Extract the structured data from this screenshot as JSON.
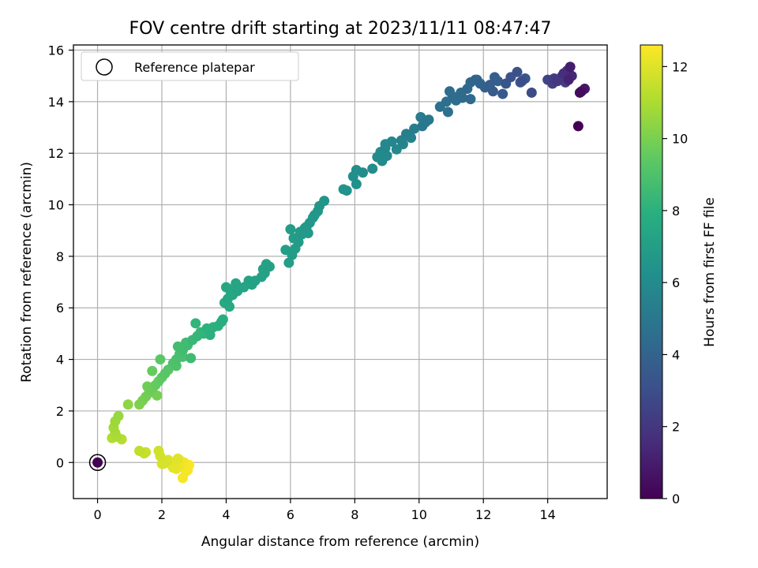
{
  "chart_data": {
    "type": "scatter",
    "title": "FOV centre drift starting at 2023/11/11 08:47:47",
    "xlabel": "Angular distance from reference (arcmin)",
    "ylabel": "Rotation from reference (arcmin)",
    "xlim": [
      -0.75,
      15.85
    ],
    "ylim": [
      -1.4,
      16.2
    ],
    "xticks": [
      0,
      2,
      4,
      6,
      8,
      10,
      12,
      14
    ],
    "yticks": [
      0,
      2,
      4,
      6,
      8,
      10,
      12,
      14,
      16
    ],
    "grid": true,
    "legend": {
      "placement": "top-left",
      "entries": [
        "Reference platepar"
      ]
    },
    "reference_point": {
      "x": 0,
      "y": 0
    },
    "colorbar": {
      "label": "Hours from first FF file",
      "range": [
        0,
        12.6
      ],
      "ticks": [
        0,
        2,
        4,
        6,
        8,
        10,
        12
      ],
      "colormap": "viridis"
    },
    "series": [
      {
        "x": [
          14.95,
          15.0,
          15.05,
          15.15,
          14.65,
          14.75,
          14.5,
          14.6,
          14.3,
          14.45,
          14.2,
          14.55,
          14.15,
          14.0,
          14.7,
          13.5,
          13.2,
          13.05,
          12.85,
          13.15,
          13.3,
          12.6,
          12.3,
          12.2,
          12.45,
          12.05,
          11.9,
          12.7,
          12.35,
          11.8,
          11.6,
          11.5,
          11.35,
          11.05,
          10.85,
          11.3,
          11.75,
          11.6,
          10.95,
          10.65,
          10.9,
          11.15,
          10.3,
          10.1,
          10.05,
          10.2,
          9.85,
          9.6,
          9.75,
          9.45,
          9.5,
          9.15,
          8.95,
          9.3,
          9.0,
          8.85,
          8.7,
          8.55,
          8.8,
          8.95,
          8.25,
          8.05,
          7.95,
          8.05,
          7.75,
          7.65,
          7.05,
          6.9,
          6.85,
          6.75,
          6.6,
          6.45,
          6.35,
          6.25,
          6.15,
          6.05,
          5.95,
          6.5,
          6.3,
          6.1,
          6.7,
          6.55,
          5.85,
          6.0,
          5.35,
          5.2,
          5.1,
          4.9,
          4.8,
          5.25,
          5.15,
          4.7,
          4.55,
          4.35,
          4.2,
          4.05,
          3.95,
          4.1,
          4.3,
          4.0,
          4.25,
          4.15,
          3.85,
          3.6,
          3.45,
          3.3,
          3.1,
          2.95,
          3.05,
          3.2,
          3.5,
          3.75,
          3.4,
          3.9,
          2.8,
          2.65,
          2.55,
          2.45,
          2.35,
          2.5,
          2.65,
          2.9,
          2.75,
          2.45,
          2.2,
          2.1,
          2.0,
          1.9,
          1.8,
          1.7,
          1.6,
          1.5,
          1.4,
          1.3,
          1.95,
          1.7,
          1.55,
          1.85,
          0.95,
          0.65,
          0.55,
          0.5,
          0.55,
          0.6,
          0.45,
          0.75,
          1.3,
          1.45,
          1.5,
          1.9,
          1.95,
          2.0,
          2.2,
          2.3,
          2.45,
          2.55,
          2.6,
          2.7,
          2.75,
          2.8,
          2.85,
          2.5,
          2.35,
          2.65,
          2.15,
          2.05
        ],
        "y": [
          13.05,
          14.35,
          14.4,
          14.5,
          14.85,
          15.0,
          15.1,
          15.2,
          14.8,
          15.0,
          14.9,
          14.75,
          14.7,
          14.85,
          15.35,
          14.35,
          14.8,
          15.15,
          14.95,
          14.75,
          14.9,
          14.3,
          14.4,
          14.65,
          14.8,
          14.55,
          14.7,
          14.7,
          14.95,
          14.85,
          14.75,
          14.5,
          14.15,
          14.2,
          14.0,
          14.35,
          14.85,
          14.1,
          14.4,
          13.8,
          13.6,
          14.05,
          13.3,
          13.05,
          13.4,
          13.2,
          12.95,
          12.75,
          12.6,
          12.5,
          12.35,
          12.45,
          12.2,
          12.15,
          11.9,
          11.7,
          11.85,
          11.4,
          12.05,
          12.35,
          11.25,
          11.35,
          11.1,
          10.8,
          10.55,
          10.6,
          10.15,
          9.95,
          9.75,
          9.6,
          9.3,
          9.1,
          8.85,
          8.55,
          8.3,
          8.05,
          7.75,
          9.15,
          8.95,
          8.7,
          9.5,
          8.9,
          8.25,
          9.05,
          7.6,
          7.35,
          7.2,
          7.05,
          6.9,
          7.7,
          7.5,
          7.05,
          6.8,
          6.65,
          6.5,
          6.35,
          6.2,
          6.05,
          6.95,
          6.8,
          6.75,
          6.6,
          5.45,
          5.25,
          5.15,
          5.0,
          4.9,
          4.75,
          5.4,
          5.05,
          4.95,
          5.3,
          5.2,
          5.55,
          4.55,
          4.35,
          4.2,
          4.0,
          3.85,
          4.5,
          4.1,
          4.05,
          4.65,
          3.75,
          3.6,
          3.45,
          3.3,
          3.15,
          3.0,
          2.85,
          2.7,
          2.55,
          2.4,
          2.25,
          4.0,
          3.55,
          2.95,
          2.6,
          2.25,
          1.8,
          1.6,
          1.35,
          1.15,
          1.0,
          0.95,
          0.9,
          0.45,
          0.35,
          0.4,
          0.45,
          0.25,
          -0.05,
          0.1,
          -0.1,
          -0.25,
          -0.15,
          0.05,
          0.0,
          -0.35,
          -0.3,
          -0.1,
          0.15,
          -0.2,
          -0.6,
          0.05,
          -0.05
        ],
        "hours": [
          0.0,
          0.4,
          0.6,
          0.8,
          1.2,
          1.4,
          1.6,
          1.8,
          2.0,
          2.1,
          2.2,
          2.3,
          2.4,
          2.5,
          1.0,
          2.9,
          3.0,
          3.1,
          3.2,
          3.3,
          3.4,
          3.5,
          3.6,
          3.7,
          3.8,
          3.9,
          4.0,
          3.35,
          3.75,
          4.05,
          4.2,
          4.3,
          4.4,
          4.5,
          4.6,
          4.35,
          4.15,
          4.25,
          4.45,
          4.7,
          4.75,
          4.55,
          5.0,
          5.1,
          5.2,
          5.15,
          5.3,
          5.4,
          5.5,
          5.6,
          5.7,
          5.75,
          5.8,
          5.85,
          5.9,
          5.95,
          6.0,
          6.1,
          6.0,
          5.9,
          6.15,
          6.2,
          6.25,
          6.3,
          6.35,
          6.4,
          6.5,
          6.55,
          6.6,
          6.65,
          6.7,
          6.75,
          6.8,
          6.85,
          6.9,
          6.95,
          7.0,
          6.8,
          6.85,
          6.9,
          6.6,
          6.75,
          7.0,
          6.9,
          7.1,
          7.15,
          7.2,
          7.25,
          7.3,
          7.15,
          7.2,
          7.3,
          7.35,
          7.4,
          7.45,
          7.5,
          7.55,
          7.6,
          7.4,
          7.45,
          7.5,
          7.55,
          7.9,
          8.0,
          8.1,
          8.2,
          8.3,
          8.4,
          8.2,
          8.3,
          8.0,
          7.95,
          8.05,
          7.85,
          8.6,
          8.7,
          8.8,
          8.9,
          9.0,
          8.7,
          8.8,
          8.55,
          8.6,
          9.0,
          9.2,
          9.3,
          9.4,
          9.5,
          9.6,
          9.7,
          9.8,
          9.9,
          10.0,
          10.1,
          9.35,
          9.6,
          9.8,
          9.9,
          10.4,
          10.6,
          10.7,
          10.8,
          10.9,
          11.0,
          11.1,
          11.2,
          11.4,
          11.5,
          11.6,
          11.7,
          11.8,
          11.9,
          12.0,
          12.1,
          12.2,
          12.3,
          12.35,
          12.4,
          12.45,
          12.5,
          12.55,
          12.0,
          12.1,
          12.45,
          11.9,
          11.85
        ]
      }
    ]
  }
}
